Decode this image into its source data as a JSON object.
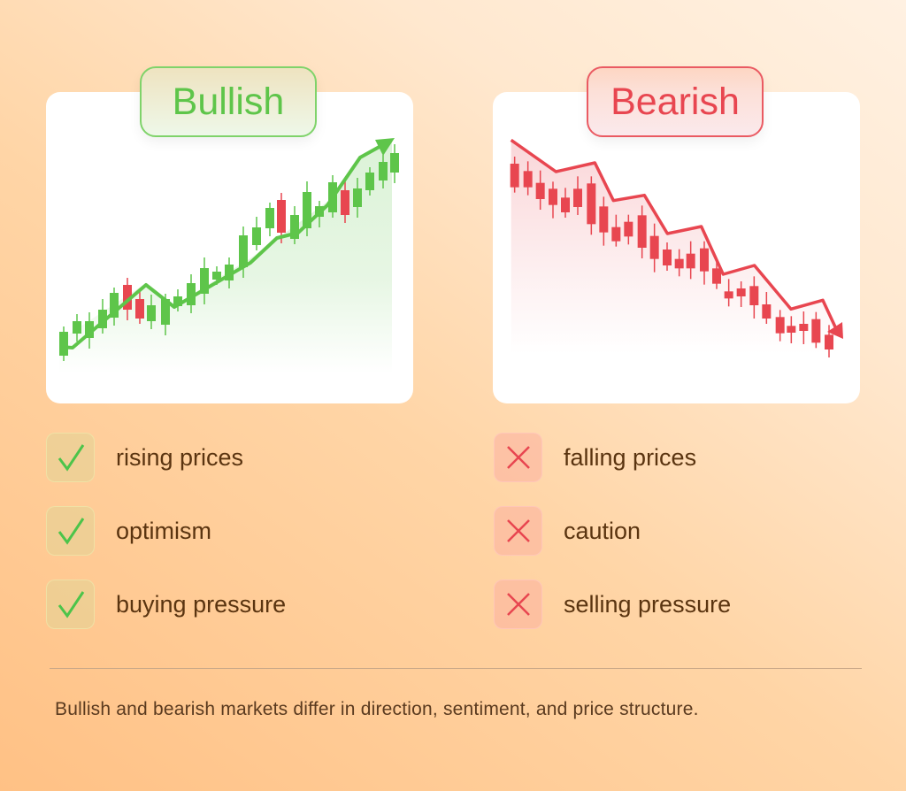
{
  "bullish": {
    "title": "Bullish",
    "color": "#5ec54a",
    "down_color": "#e84650",
    "items": [
      {
        "label": "rising prices",
        "icon": "check-icon"
      },
      {
        "label": "optimism",
        "icon": "check-icon"
      },
      {
        "label": "buying pressure",
        "icon": "check-icon"
      }
    ]
  },
  "bearish": {
    "title": "Bearish",
    "color": "#e84650",
    "items": [
      {
        "label": "falling prices",
        "icon": "cross-icon"
      },
      {
        "label": "caution",
        "icon": "cross-icon"
      },
      {
        "label": "selling pressure",
        "icon": "cross-icon"
      }
    ]
  },
  "footer": "Bullish and bearish markets differ in direction, sentiment, and price structure."
}
